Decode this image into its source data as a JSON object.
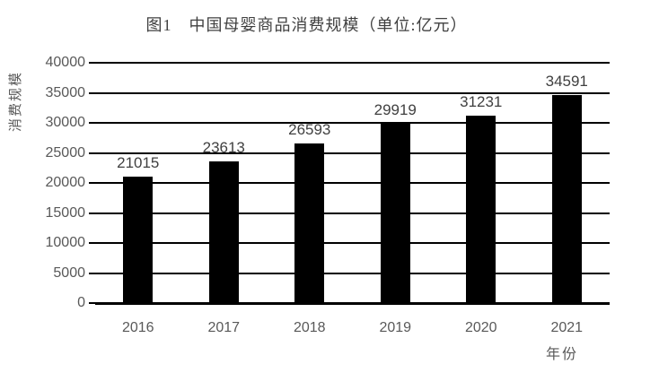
{
  "chart_data": {
    "type": "bar",
    "title": "图1　中国母婴商品消费规模（单位:亿元）",
    "categories": [
      "2016",
      "2017",
      "2018",
      "2019",
      "2020",
      "2021"
    ],
    "values": [
      21015,
      23613,
      26593,
      29919,
      31231,
      34591
    ],
    "xlabel": "年份",
    "ylabel": "消费规模",
    "ylim": [
      0,
      40000
    ],
    "yticks": [
      0,
      5000,
      10000,
      15000,
      20000,
      25000,
      30000,
      35000,
      40000
    ],
    "grid": true,
    "legend": "none",
    "data_labels": true,
    "colors": {
      "bar": "#000000",
      "gridline": "#000000",
      "axis_line": "#000000",
      "tick_label": "#595959",
      "data_label": "#404040",
      "title": "#404040"
    }
  }
}
